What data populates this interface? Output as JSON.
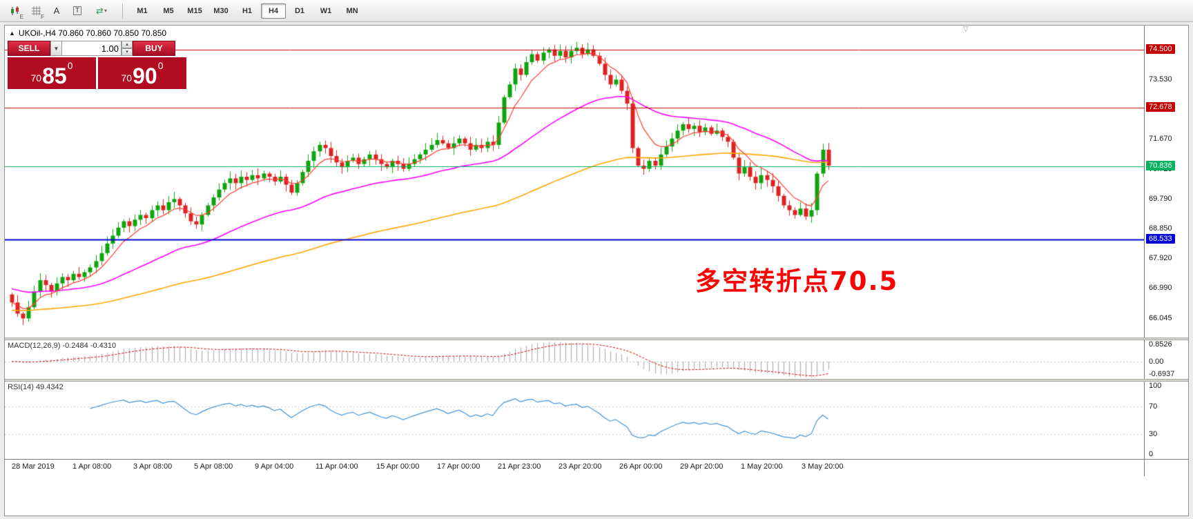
{
  "toolbar": {
    "icon_badges": [
      "E",
      "F"
    ],
    "icon_letters": [
      "A",
      "T"
    ],
    "glyphs": {
      "swap": "⇄",
      "caret": "▾",
      "oneclick": "▲",
      "shift_marker": "▽",
      "spin_up": "▴",
      "spin_down": "▾",
      "vol_caret": "▼"
    },
    "timeframes": [
      "M1",
      "M5",
      "M15",
      "M30",
      "H1",
      "H4",
      "D1",
      "W1",
      "MN"
    ],
    "active_timeframe": "H4"
  },
  "chart": {
    "title": "UKOil-,H4 70.860 70.860 70.850 70.850",
    "trade_panel": {
      "sell_label": "SELL",
      "buy_label": "BUY",
      "volume": "1.00",
      "sell_price": {
        "prefix": "70",
        "big": "85",
        "sup": "0"
      },
      "buy_price": {
        "prefix": "70",
        "big": "90",
        "sup": "0"
      }
    },
    "annotation": "多空转折点70.5",
    "annotation_color": "#ff0000",
    "axis_plain_labels": [
      "73.530",
      "71.670",
      "70.725",
      "69.790",
      "68.850",
      "67.920",
      "66.990",
      "66.045"
    ],
    "axis_badges": [
      {
        "text": "74.500",
        "color": "#c40000"
      },
      {
        "text": "72.678",
        "color": "#c40000"
      },
      {
        "text": "70.836",
        "color": "#00b25f"
      },
      {
        "text": "68.533",
        "color": "#0000d8"
      }
    ]
  },
  "macd": {
    "label": "MACD(12,26,9) -0.2484 -0.4310",
    "axis_labels": [
      "0.8526",
      "0.00",
      "-0.6937"
    ]
  },
  "rsi": {
    "label": "RSI(14) 49.4342",
    "axis_labels": [
      "100",
      "70",
      "30",
      "0"
    ],
    "levels": [
      70,
      30
    ]
  },
  "time_axis": [
    "28 Mar 2019",
    "1 Apr 08:00",
    "3 Apr 08:00",
    "5 Apr 08:00",
    "9 Apr 04:00",
    "11 Apr 04:00",
    "15 Apr 00:00",
    "17 Apr 00:00",
    "21 Apr 23:00",
    "23 Apr 20:00",
    "26 Apr 00:00",
    "29 Apr 20:00",
    "1 May 20:00",
    "3 May 20:00"
  ],
  "chart_data": {
    "type": "candlestick",
    "symbol": "UKOil-",
    "timeframe": "H4",
    "first_open": 66.8,
    "closes": [
      66.55,
      66.2,
      66.05,
      66.4,
      66.9,
      67.25,
      67.1,
      66.9,
      67.15,
      67.35,
      67.25,
      67.45,
      67.35,
      67.5,
      67.65,
      67.85,
      68.1,
      68.4,
      68.65,
      68.9,
      69.1,
      68.95,
      69.15,
      69.3,
      69.2,
      69.45,
      69.6,
      69.45,
      69.7,
      69.8,
      69.6,
      69.35,
      69.1,
      69.0,
      69.3,
      69.6,
      69.85,
      70.1,
      70.3,
      70.45,
      70.3,
      70.5,
      70.4,
      70.55,
      70.45,
      70.6,
      70.5,
      70.35,
      70.5,
      70.25,
      70.0,
      70.3,
      70.65,
      71.0,
      71.3,
      71.5,
      71.4,
      71.15,
      70.95,
      70.8,
      71.0,
      71.1,
      70.9,
      71.05,
      71.2,
      71.05,
      70.9,
      70.8,
      71.0,
      70.9,
      70.75,
      70.9,
      71.05,
      71.2,
      71.35,
      71.5,
      71.65,
      71.55,
      71.4,
      71.55,
      71.7,
      71.55,
      71.35,
      71.5,
      71.4,
      71.6,
      71.5,
      72.2,
      73.0,
      73.4,
      73.9,
      73.7,
      74.1,
      74.35,
      74.15,
      74.4,
      74.5,
      74.3,
      74.45,
      74.25,
      74.45,
      74.55,
      74.35,
      74.5,
      74.3,
      74.05,
      73.7,
      73.4,
      73.55,
      73.2,
      72.8,
      71.4,
      70.85,
      70.75,
      71.0,
      70.85,
      71.2,
      71.45,
      71.7,
      71.95,
      72.15,
      72.0,
      72.1,
      71.9,
      72.05,
      71.85,
      71.95,
      71.75,
      71.6,
      71.1,
      70.6,
      70.8,
      70.5,
      70.3,
      70.55,
      70.4,
      70.2,
      69.9,
      69.6,
      69.45,
      69.3,
      69.5,
      69.25,
      69.45,
      70.6,
      71.35,
      70.85
    ],
    "ylim": [
      65.45,
      75.25
    ],
    "hlines": [
      {
        "price": 74.5,
        "color": "#c40000",
        "width": 1
      },
      {
        "price": 72.678,
        "color": "#c40000",
        "width": 1
      },
      {
        "price": 68.533,
        "color": "#0000d8",
        "width": 2
      },
      {
        "price": 70.836,
        "color": "#00b25f",
        "width": 1
      }
    ],
    "colors": {
      "up": "#0fa40f",
      "down": "#dd2222",
      "ma_fast": "#ff3b30",
      "ma_mid": "#ff00ff",
      "ma_slow": "#ffa500",
      "macd_hist": "#b0b0b0",
      "macd_signal": "#d00000",
      "rsi_line": "#3f93d8"
    },
    "indicators": {
      "ma_fast_period": 7,
      "ma_mid_period": 40,
      "ma_slow_period": 110,
      "macd": [
        12,
        26,
        9
      ],
      "rsi_period": 14
    },
    "macd_ylim": [
      -0.78,
      0.95
    ]
  }
}
